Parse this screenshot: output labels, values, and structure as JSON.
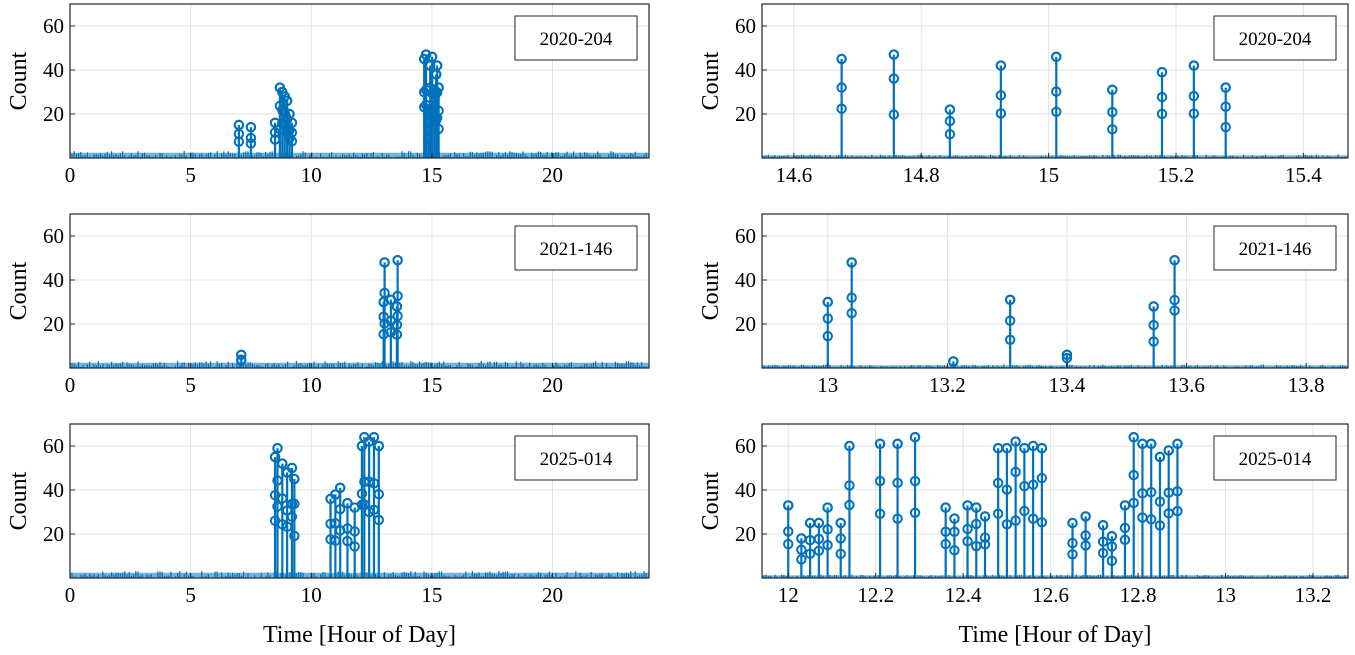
{
  "colors": {
    "series": "#0072BD",
    "grid": "#e3e3e3",
    "axis": "#262626"
  },
  "xlabel": "Time [Hour of Day]",
  "chart_data": [
    {
      "type": "stem",
      "legend": "2020-204",
      "ylabel": "Count",
      "xlim": [
        0,
        24
      ],
      "ylim": [
        0,
        70
      ],
      "xticks": [
        0,
        5,
        10,
        15,
        20
      ],
      "yticks": [
        20,
        40,
        60
      ],
      "xlabel": "",
      "grid": true,
      "legend_position": "top-right",
      "baseline": 2,
      "stems": [
        [
          7.0,
          15
        ],
        [
          7.5,
          14
        ],
        [
          8.5,
          16
        ],
        [
          8.7,
          32
        ],
        [
          8.8,
          30
        ],
        [
          8.9,
          28
        ],
        [
          9.0,
          26
        ],
        [
          9.1,
          20
        ],
        [
          9.2,
          16
        ],
        [
          14.68,
          45
        ],
        [
          14.76,
          47
        ],
        [
          14.85,
          21
        ],
        [
          14.93,
          42
        ],
        [
          15.01,
          46
        ],
        [
          15.1,
          31
        ],
        [
          15.18,
          38
        ],
        [
          15.22,
          42
        ],
        [
          15.28,
          32
        ]
      ]
    },
    {
      "type": "stem",
      "legend": "2020-204",
      "ylabel": "Count",
      "xlim": [
        14.55,
        15.47
      ],
      "ylim": [
        0,
        70
      ],
      "xticks": [
        14.6,
        14.8,
        15.0,
        15.2,
        15.4
      ],
      "yticks": [
        20,
        40,
        60
      ],
      "xticklabels": [
        "14.6",
        "14.8",
        "15",
        "15.2",
        "15.4"
      ],
      "xlabel": "",
      "grid": true,
      "legend_position": "top-right",
      "baseline": 1,
      "stems": [
        [
          14.675,
          45
        ],
        [
          14.757,
          47
        ],
        [
          14.845,
          22
        ],
        [
          14.925,
          42
        ],
        [
          15.012,
          46
        ],
        [
          15.1,
          31
        ],
        [
          15.178,
          39
        ],
        [
          15.228,
          42
        ],
        [
          15.278,
          32
        ]
      ]
    },
    {
      "type": "stem",
      "legend": "2021-146",
      "ylabel": "Count",
      "xlim": [
        0,
        24
      ],
      "ylim": [
        0,
        70
      ],
      "xticks": [
        0,
        5,
        10,
        15,
        20
      ],
      "yticks": [
        20,
        40,
        60
      ],
      "xlabel": "",
      "grid": true,
      "legend_position": "top-right",
      "baseline": 2,
      "stems": [
        [
          7.1,
          6
        ],
        [
          13.0,
          30
        ],
        [
          13.04,
          48
        ],
        [
          13.3,
          31
        ],
        [
          13.55,
          28
        ],
        [
          13.58,
          49
        ]
      ]
    },
    {
      "type": "stem",
      "legend": "2021-146",
      "ylabel": "Count",
      "xlim": [
        12.89,
        13.87
      ],
      "ylim": [
        0,
        70
      ],
      "xticks": [
        13.0,
        13.2,
        13.4,
        13.6,
        13.8
      ],
      "yticks": [
        20,
        40,
        60
      ],
      "xticklabels": [
        "13",
        "13.2",
        "13.4",
        "13.6",
        "13.8"
      ],
      "xlabel": "",
      "grid": true,
      "legend_position": "top-right",
      "baseline": 1,
      "stems": [
        [
          13.0,
          30
        ],
        [
          13.04,
          48
        ],
        [
          13.21,
          3
        ],
        [
          13.305,
          31
        ],
        [
          13.4,
          6
        ],
        [
          13.545,
          28
        ],
        [
          13.58,
          49
        ]
      ]
    },
    {
      "type": "stem",
      "legend": "2025-014",
      "ylabel": "Count",
      "xlim": [
        0,
        24
      ],
      "ylim": [
        0,
        70
      ],
      "xticks": [
        0,
        5,
        10,
        15,
        20
      ],
      "yticks": [
        20,
        40,
        60
      ],
      "xlabel": "Time [Hour of Day]",
      "grid": true,
      "legend_position": "top-right",
      "baseline": 2,
      "stems": [
        [
          8.5,
          55
        ],
        [
          8.6,
          59
        ],
        [
          8.8,
          52
        ],
        [
          9.0,
          48
        ],
        [
          9.2,
          50
        ],
        [
          9.3,
          45
        ],
        [
          10.8,
          36
        ],
        [
          11.0,
          38
        ],
        [
          11.2,
          41
        ],
        [
          11.5,
          34
        ],
        [
          11.8,
          32
        ],
        [
          12.1,
          60
        ],
        [
          12.2,
          64
        ],
        [
          12.4,
          62
        ],
        [
          12.6,
          64
        ],
        [
          12.8,
          60
        ]
      ]
    },
    {
      "type": "stem",
      "legend": "2025-014",
      "ylabel": "Count",
      "xlim": [
        11.94,
        13.28
      ],
      "ylim": [
        0,
        70
      ],
      "xticks": [
        12.0,
        12.2,
        12.4,
        12.6,
        12.8,
        13.0,
        13.2
      ],
      "yticks": [
        20,
        40,
        60
      ],
      "xticklabels": [
        "12",
        "12.2",
        "12.4",
        "12.6",
        "12.8",
        "13",
        "13.2"
      ],
      "xlabel": "Time [Hour of Day]",
      "grid": true,
      "legend_position": "top-right",
      "baseline": 1,
      "stems": [
        [
          12.0,
          33
        ],
        [
          12.03,
          18
        ],
        [
          12.05,
          25
        ],
        [
          12.07,
          25
        ],
        [
          12.09,
          32
        ],
        [
          12.12,
          25
        ],
        [
          12.14,
          60
        ],
        [
          12.21,
          61
        ],
        [
          12.25,
          61
        ],
        [
          12.29,
          64
        ],
        [
          12.36,
          32
        ],
        [
          12.38,
          27
        ],
        [
          12.41,
          33
        ],
        [
          12.43,
          32
        ],
        [
          12.45,
          28
        ],
        [
          12.48,
          59
        ],
        [
          12.5,
          59
        ],
        [
          12.52,
          62
        ],
        [
          12.54,
          59
        ],
        [
          12.56,
          60
        ],
        [
          12.58,
          59
        ],
        [
          12.65,
          25
        ],
        [
          12.68,
          28
        ],
        [
          12.72,
          24
        ],
        [
          12.74,
          19
        ],
        [
          12.77,
          33
        ],
        [
          12.79,
          64
        ],
        [
          12.81,
          61
        ],
        [
          12.83,
          61
        ],
        [
          12.85,
          55
        ],
        [
          12.87,
          58
        ],
        [
          12.89,
          61
        ]
      ]
    }
  ]
}
